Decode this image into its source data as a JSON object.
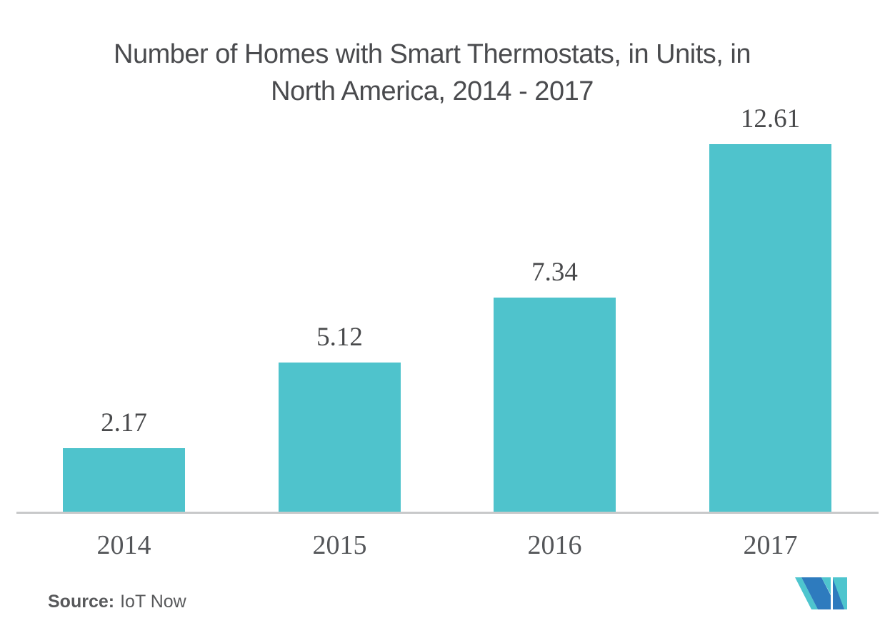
{
  "chart": {
    "title_lines": [
      "Number of Homes with Smart Thermostats, in Units, in",
      "North America, 2014 - 2017"
    ]
  },
  "source": {
    "label": "Source:",
    "value": "IoT Now"
  },
  "logo": {
    "name": "mordor-intelligence-logo-mark",
    "blue": "#2e7bbe",
    "teal": "#4ec5ce"
  },
  "colors": {
    "bar": "#4fc3cc",
    "axis": "#c8c9ca",
    "title_text": "#4a4b4e",
    "value_text": "#48494b",
    "year_text": "#545659",
    "source_text": "#58595b"
  },
  "chart_data": {
    "type": "bar",
    "categories": [
      "2014",
      "2015",
      "2016",
      "2017"
    ],
    "values": [
      2.17,
      5.12,
      7.34,
      12.61
    ],
    "data_labels": [
      "2.17",
      "5.12",
      "7.34",
      "12.61"
    ],
    "title": "Number of Homes with Smart Thermostats, in Units, in North America, 2014 - 2017",
    "xlabel": "",
    "ylabel": "",
    "ylim": [
      0,
      14
    ],
    "grid": false,
    "legend": false,
    "bar_color": "#4fc3cc",
    "source": "IoT Now"
  }
}
